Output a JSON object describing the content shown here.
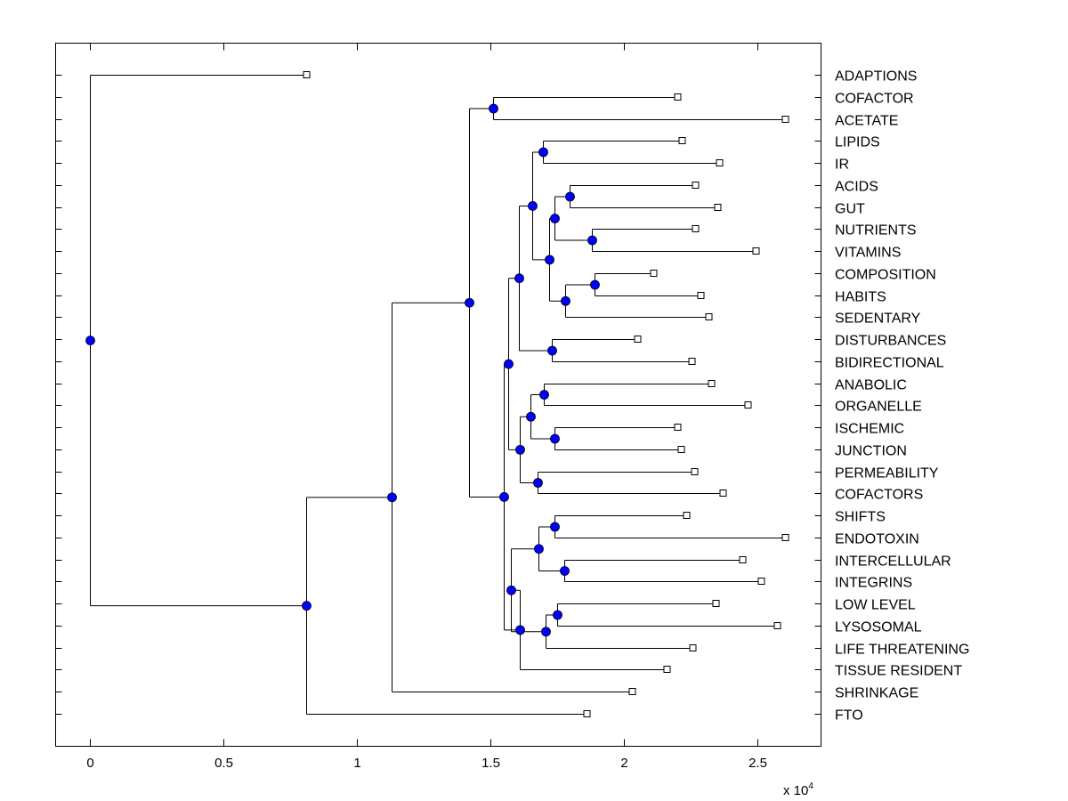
{
  "chart_data": {
    "type": "dendrogram",
    "orientation": "horizontal",
    "xlim": [
      -1267,
      27400
    ],
    "x_ticks": [
      0,
      5000,
      10000,
      15000,
      20000,
      25000
    ],
    "x_tick_labels": [
      "0",
      "0.5",
      "1",
      "1.5",
      "2",
      "2.5"
    ],
    "x_exponent_label": "x 10",
    "x_exponent": "4",
    "grid": false,
    "colors": {
      "node": "#0000ff",
      "line": "#000000",
      "leaf_marker": "#ffffff"
    },
    "labels": [
      "ADAPTIONS",
      "COFACTOR",
      "ACETATE",
      "LIPIDS",
      "IR",
      "ACIDS",
      "GUT",
      "NUTRIENTS",
      "VITAMINS",
      "COMPOSITION",
      "HABITS",
      "SEDENTARY",
      "DISTURBANCES",
      "BIDIRECTIONAL",
      "ANABOLIC",
      "ORGANELLE",
      "ISCHEMIC",
      "JUNCTION",
      "PERMEABILITY",
      "COFACTORS",
      "SHIFTS",
      "ENDOTOXIN",
      "INTERCELLULAR",
      "INTEGRINS",
      "LOW LEVEL",
      "LYSOSOMAL",
      "LIFE THREATENING",
      "TISSUE RESIDENT",
      "SHRINKAGE",
      "FTO"
    ],
    "leaf_values": [
      8133,
      22033,
      26067,
      22200,
      23600,
      22700,
      23533,
      22700,
      24967,
      21133,
      22900,
      23200,
      20533,
      22567,
      23300,
      24667,
      22033,
      22167,
      22667,
      23733,
      22367,
      26067,
      24467,
      25167,
      23467,
      25767,
      22600,
      21633,
      20333,
      18633
    ],
    "tree": {
      "v": 0,
      "c": [
        {
          "leaf": 0
        },
        {
          "v": 8133,
          "c": [
            {
              "v": 11333,
              "c": [
                {
                  "v": 14200,
                  "c": [
                    {
                      "v": 15100,
                      "c": [
                        {
                          "leaf": 1
                        },
                        {
                          "leaf": 2
                        }
                      ]
                    },
                    {
                      "v": 15533,
                      "c": [
                        {
                          "v": 15667,
                          "c": [
                            {
                              "v": 16067,
                              "c": [
                                {
                                  "v": 16567,
                                  "c": [
                                    {
                                      "v": 16967,
                                      "c": [
                                        {
                                          "leaf": 3
                                        },
                                        {
                                          "leaf": 4
                                        }
                                      ]
                                    },
                                    {
                                      "v": 17200,
                                      "c": [
                                        {
                                          "v": 17433,
                                          "c": [
                                            {
                                              "v": 17967,
                                              "c": [
                                                {
                                                  "leaf": 5
                                                },
                                                {
                                                  "leaf": 6
                                                }
                                              ]
                                            },
                                            {
                                              "v": 18833,
                                              "c": [
                                                {
                                                  "leaf": 7
                                                },
                                                {
                                                  "leaf": 8
                                                }
                                              ]
                                            }
                                          ]
                                        },
                                        {
                                          "v": 17833,
                                          "c": [
                                            {
                                              "v": 18900,
                                              "c": [
                                                {
                                                  "leaf": 9
                                                },
                                                {
                                                  "leaf": 10
                                                }
                                              ]
                                            },
                                            {
                                              "leaf": 11
                                            }
                                          ]
                                        }
                                      ]
                                    }
                                  ]
                                },
                                {
                                  "v": 17333,
                                  "c": [
                                    {
                                      "leaf": 12
                                    },
                                    {
                                      "leaf": 13
                                    }
                                  ]
                                }
                              ]
                            },
                            {
                              "v": 16133,
                              "c": [
                                {
                                  "v": 16500,
                                  "c": [
                                    {
                                      "v": 17033,
                                      "c": [
                                        {
                                          "leaf": 14
                                        },
                                        {
                                          "leaf": 15
                                        }
                                      ]
                                    },
                                    {
                                      "v": 17400,
                                      "c": [
                                        {
                                          "leaf": 16
                                        },
                                        {
                                          "leaf": 17
                                        }
                                      ]
                                    }
                                  ]
                                },
                                {
                                  "v": 16767,
                                  "c": [
                                    {
                                      "leaf": 18
                                    },
                                    {
                                      "leaf": 19
                                    }
                                  ]
                                }
                              ]
                            }
                          ]
                        },
                        {
                          "v": 16100,
                          "c": [
                            {
                              "v": 15767,
                              "c": [
                                {
                                  "v": 16833,
                                  "c": [
                                    {
                                      "v": 17433,
                                      "c": [
                                        {
                                          "leaf": 20
                                        },
                                        {
                                          "leaf": 21
                                        }
                                      ]
                                    },
                                    {
                                      "v": 17767,
                                      "c": [
                                        {
                                          "leaf": 22
                                        },
                                        {
                                          "leaf": 23
                                        }
                                      ]
                                    }
                                  ]
                                },
                                {
                                  "v": 17067,
                                  "c": [
                                    {
                                      "v": 17533,
                                      "c": [
                                        {
                                          "leaf": 24
                                        },
                                        {
                                          "leaf": 25
                                        }
                                      ]
                                    },
                                    {
                                      "leaf": 26
                                    }
                                  ]
                                }
                              ]
                            },
                            {
                              "leaf": 27
                            }
                          ]
                        }
                      ]
                    }
                  ]
                },
                {
                  "leaf": 28
                }
              ]
            },
            {
              "leaf": 29
            }
          ]
        }
      ]
    }
  }
}
